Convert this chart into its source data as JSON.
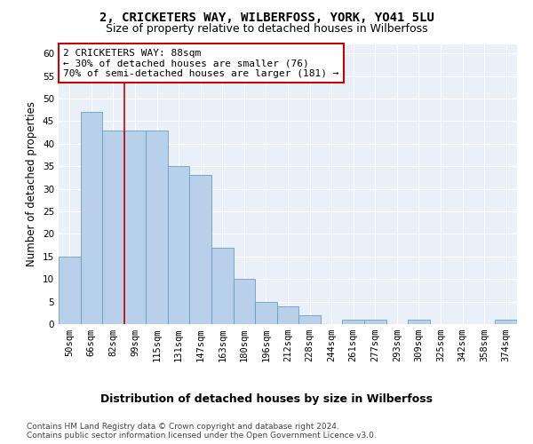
{
  "title1": "2, CRICKETERS WAY, WILBERFOSS, YORK, YO41 5LU",
  "title2": "Size of property relative to detached houses in Wilberfoss",
  "xlabel": "Distribution of detached houses by size in Wilberfoss",
  "ylabel": "Number of detached properties",
  "bar_labels": [
    "50sqm",
    "66sqm",
    "82sqm",
    "99sqm",
    "115sqm",
    "131sqm",
    "147sqm",
    "163sqm",
    "180sqm",
    "196sqm",
    "212sqm",
    "228sqm",
    "244sqm",
    "261sqm",
    "277sqm",
    "293sqm",
    "309sqm",
    "325sqm",
    "342sqm",
    "358sqm",
    "374sqm"
  ],
  "bar_values": [
    15,
    47,
    43,
    43,
    43,
    35,
    33,
    17,
    10,
    5,
    4,
    2,
    0,
    1,
    1,
    0,
    1,
    0,
    0,
    0,
    1
  ],
  "bar_color": "#b8d0ea",
  "bar_edgecolor": "#6a9ec0",
  "background_color": "#eaf0f8",
  "grid_color": "#ffffff",
  "red_line_x": 2.5,
  "annotation_line1": "2 CRICKETERS WAY: 88sqm",
  "annotation_line2": "← 30% of detached houses are smaller (76)",
  "annotation_line3": "70% of semi-detached houses are larger (181) →",
  "annotation_box_color": "#ffffff",
  "annotation_box_edgecolor": "#cc0000",
  "ylim": [
    0,
    62
  ],
  "yticks": [
    0,
    5,
    10,
    15,
    20,
    25,
    30,
    35,
    40,
    45,
    50,
    55,
    60
  ],
  "footer1": "Contains HM Land Registry data © Crown copyright and database right 2024.",
  "footer2": "Contains public sector information licensed under the Open Government Licence v3.0.",
  "title_fontsize": 10,
  "subtitle_fontsize": 9,
  "tick_fontsize": 7.5,
  "xlabel_fontsize": 9,
  "ylabel_fontsize": 8.5,
  "annotation_fontsize": 8,
  "footer_fontsize": 6.5
}
